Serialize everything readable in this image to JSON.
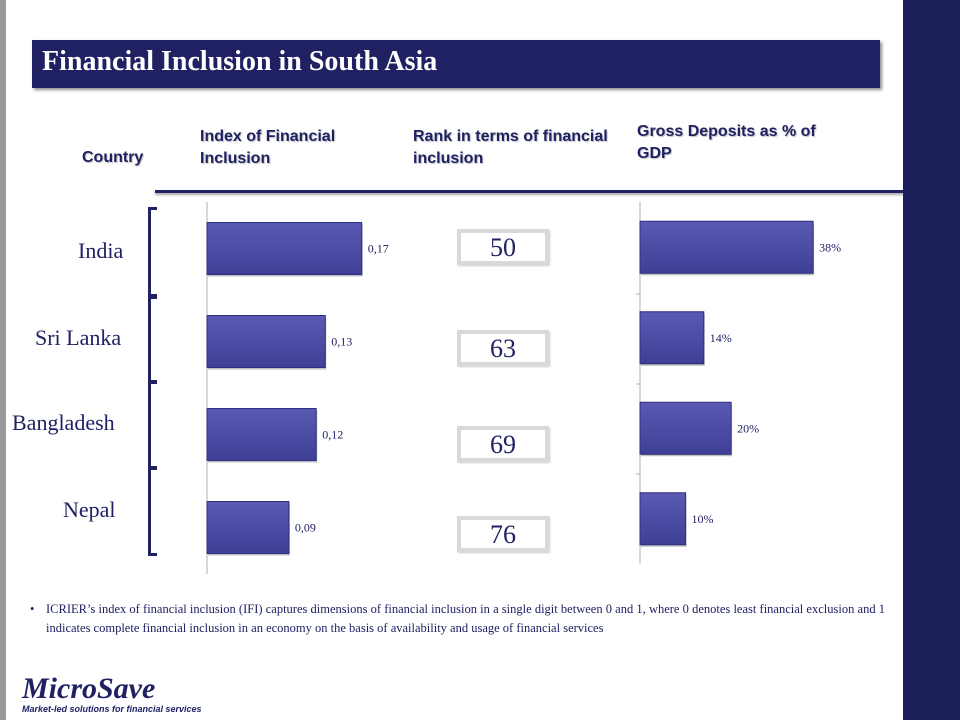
{
  "title": "Financial Inclusion in South Asia",
  "headers": {
    "country": "Country",
    "ifi": "Index of Financial Inclusion",
    "rank": "Rank in terms of financial inclusion",
    "deposits": "Gross Deposits as % of GDP"
  },
  "chart_data": [
    {
      "type": "bar",
      "orientation": "horizontal",
      "title": "Index of Financial Inclusion",
      "categories": [
        "India",
        "Sri Lanka",
        "Bangladesh",
        "Nepal"
      ],
      "values": [
        0.17,
        0.13,
        0.12,
        0.09
      ],
      "value_labels": [
        "0,17",
        "0,13",
        "0,12",
        "0,09"
      ],
      "xlim": [
        0,
        0.2
      ],
      "bar_color": "#3f3f96"
    },
    {
      "type": "table",
      "title": "Rank in terms of financial inclusion",
      "categories": [
        "India",
        "Sri Lanka",
        "Bangladesh",
        "Nepal"
      ],
      "values": [
        50,
        63,
        69,
        76
      ]
    },
    {
      "type": "bar",
      "orientation": "horizontal",
      "title": "Gross Deposits as % of GDP",
      "categories": [
        "India",
        "Sri Lanka",
        "Bangladesh",
        "Nepal"
      ],
      "values": [
        38,
        14,
        20,
        10
      ],
      "value_labels": [
        "38%",
        "14%",
        "20%",
        "10%"
      ],
      "xlim": [
        0,
        45
      ],
      "bar_color": "#3f3f96"
    }
  ],
  "note": "ICRIER’s index of financial inclusion (IFI) captures dimensions of financial inclusion in a single digit between 0 and 1, where 0 denotes least financial exclusion and 1 indicates complete financial inclusion in an economy on the basis of availability and usage of financial services",
  "logo": {
    "name": "MicroSave",
    "tagline": "Market-led solutions for financial services"
  },
  "colors": {
    "navy": "#1f2163",
    "bar": "#3f3f96",
    "side_bar": "#1d1f5a"
  }
}
